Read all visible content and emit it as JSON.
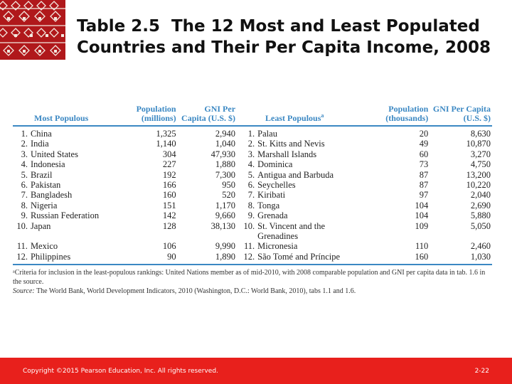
{
  "title": {
    "bold": "Table 2.5",
    "text": "The 12 Most and Least Populated Countries and Their Per Capita Income, 2008"
  },
  "colors": {
    "accent": "#3b88c3",
    "footer": "#e8201c",
    "logo": "#b0181b"
  },
  "table": {
    "headers": {
      "most_populous": "Most Populous",
      "population_millions": "Population (millions)",
      "gni_1": "GNI Per Capita (U.S. $)",
      "least_populous": "Least Populous",
      "least_sup": "a",
      "population_thousands": "Population (thousands)",
      "gni_2": "GNI Per Capita (U.S. $)"
    },
    "rows": [
      {
        "rank1": "1.",
        "most": "China",
        "pop1": "1,325",
        "gni1": "2,940",
        "rank2": "1.",
        "least": "Palau",
        "pop2": "20",
        "gni2": "8,630"
      },
      {
        "rank1": "2.",
        "most": "India",
        "pop1": "1,140",
        "gni1": "1,040",
        "rank2": "2.",
        "least": "St. Kitts and Nevis",
        "pop2": "49",
        "gni2": "10,870"
      },
      {
        "rank1": "3.",
        "most": "United States",
        "pop1": "304",
        "gni1": "47,930",
        "rank2": "3.",
        "least": "Marshall Islands",
        "pop2": "60",
        "gni2": "3,270"
      },
      {
        "rank1": "4.",
        "most": "Indonesia",
        "pop1": "227",
        "gni1": "1,880",
        "rank2": "4.",
        "least": "Dominica",
        "pop2": "73",
        "gni2": "4,750"
      },
      {
        "rank1": "5.",
        "most": "Brazil",
        "pop1": "192",
        "gni1": "7,300",
        "rank2": "5.",
        "least": "Antigua and Barbuda",
        "pop2": "87",
        "gni2": "13,200"
      },
      {
        "rank1": "6.",
        "most": "Pakistan",
        "pop1": "166",
        "gni1": "950",
        "rank2": "6.",
        "least": "Seychelles",
        "pop2": "87",
        "gni2": "10,220"
      },
      {
        "rank1": "7.",
        "most": "Bangladesh",
        "pop1": "160",
        "gni1": "520",
        "rank2": "7.",
        "least": "Kiribati",
        "pop2": "97",
        "gni2": "2,040"
      },
      {
        "rank1": "8.",
        "most": "Nigeria",
        "pop1": "151",
        "gni1": "1,170",
        "rank2": "8.",
        "least": "Tonga",
        "pop2": "104",
        "gni2": "2,690"
      },
      {
        "rank1": "9.",
        "most": "Russian Federation",
        "pop1": "142",
        "gni1": "9,660",
        "rank2": "9.",
        "least": "Grenada",
        "pop2": "104",
        "gni2": "5,880"
      },
      {
        "rank1": "10.",
        "most": "Japan",
        "pop1": "128",
        "gni1": "38,130",
        "rank2": "10.",
        "least": "St. Vincent and the Grenadines",
        "pop2": "109",
        "gni2": "5,050"
      },
      {
        "rank1": "11.",
        "most": "Mexico",
        "pop1": "106",
        "gni1": "9,990",
        "rank2": "11.",
        "least": "Micronesia",
        "pop2": "110",
        "gni2": "2,460"
      },
      {
        "rank1": "12.",
        "most": "Philippines",
        "pop1": "90",
        "gni1": "1,890",
        "rank2": "12.",
        "least": "São Tomé and Príncipe",
        "pop2": "160",
        "gni2": "1,030"
      }
    ]
  },
  "notes": {
    "footnote": "ᵃCriteria for inclusion in the least-populous rankings: United Nations member as of mid-2010, with 2008 comparable population and GNI per capita data in tab. 1.6 in the source.",
    "source_label": "Source:",
    "source_text": "The World Bank, World Development Indicators, 2010 (Washington, D.C.: World Bank, 2010), tabs 1.1 and 1.6."
  },
  "footer": {
    "copyright": "Copyright ©2015 Pearson Education, Inc. All rights reserved.",
    "slide_number": "2-22"
  }
}
